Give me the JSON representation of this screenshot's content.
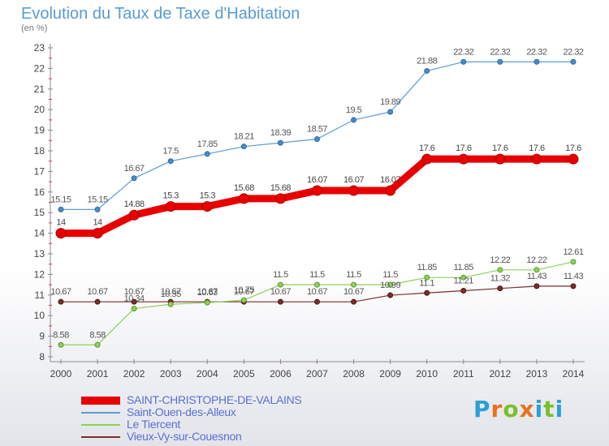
{
  "title": "Evolution du Taux de Taxe d'Habitation",
  "subtitle": "(en %)",
  "brand": {
    "text": "Proxiti",
    "letters": [
      "P",
      "r",
      "o",
      "x",
      "i",
      "t",
      "i"
    ],
    "colors": [
      "#2b9fd6",
      "#e8731d",
      "#7bbf2a",
      "#e8731d",
      "#2b9fd6",
      "#7bbf2a",
      "#2b9fd6"
    ]
  },
  "chart_data": {
    "type": "line",
    "title": "Evolution du Taux de Taxe d'Habitation",
    "ylabel": "(en %)",
    "xlabel": "",
    "x": [
      "2000",
      "2001",
      "2002",
      "2003",
      "2004",
      "2005",
      "2006",
      "2007",
      "2008",
      "2009",
      "2010",
      "2011",
      "2012",
      "2013",
      "2014"
    ],
    "ylim": [
      8,
      23
    ],
    "yticks": [
      "8",
      "9",
      "10",
      "11",
      "12",
      "13",
      "14",
      "15",
      "16",
      "17",
      "18",
      "19",
      "20",
      "21",
      "22",
      "23"
    ],
    "grid": false,
    "legend": "bottom-left",
    "series": [
      {
        "name": "SAINT-CHRISTOPHE-DE-VALAINS",
        "color": "#e80000",
        "values": [
          14,
          14,
          14.88,
          15.3,
          15.3,
          15.68,
          15.68,
          16.07,
          16.07,
          16.07,
          17.6,
          17.6,
          17.6,
          17.6,
          17.6
        ],
        "labels": [
          "14",
          "14",
          "14.88",
          "15.3",
          "15.3",
          "15.68",
          "15.68",
          "16.07",
          "16.07",
          "16.07",
          "17.6",
          "17.6",
          "17.6",
          "17.6",
          "17.6"
        ]
      },
      {
        "name": "Saint-Ouen-des-Alleux",
        "color": "#5b9bd5",
        "values": [
          15.15,
          15.15,
          16.67,
          17.5,
          17.85,
          18.21,
          18.39,
          18.57,
          19.5,
          19.89,
          21.88,
          22.32,
          22.32,
          22.32,
          22.32
        ],
        "labels": [
          "15.15",
          "15.15",
          "16.67",
          "17.5",
          "17.85",
          "18.21",
          "18.39",
          "18.57",
          "19.5",
          "19.89",
          "21.88",
          "22.32",
          "22.32",
          "22.32",
          "22.32"
        ]
      },
      {
        "name": "Le Tiercent",
        "color": "#8ed05a",
        "values": [
          8.58,
          8.58,
          10.34,
          10.55,
          10.63,
          10.75,
          11.5,
          11.5,
          11.5,
          11.5,
          11.85,
          11.85,
          12.22,
          12.22,
          12.61
        ],
        "labels": [
          "8.58",
          "8.58",
          "10.34",
          "10.55",
          "10.63",
          "10.75",
          "11.5",
          "11.5",
          "11.5",
          "11.5",
          "11.85",
          "11.85",
          "12.22",
          "12.22",
          "12.61"
        ]
      },
      {
        "name": "Vieux-Vy-sur-Couesnon",
        "color": "#7b2c2c",
        "values": [
          10.67,
          10.67,
          10.67,
          10.67,
          10.67,
          10.67,
          10.67,
          10.67,
          10.67,
          10.99,
          11.1,
          11.21,
          11.32,
          11.43,
          11.43
        ],
        "labels": [
          "10.67",
          "10.67",
          "10.67",
          "10.67",
          "10.67",
          "10.67",
          "10.67",
          "10.67",
          "10.67",
          "10.99",
          "11.1",
          "11.21",
          "11.32",
          "11.43",
          "11.43"
        ]
      }
    ]
  }
}
